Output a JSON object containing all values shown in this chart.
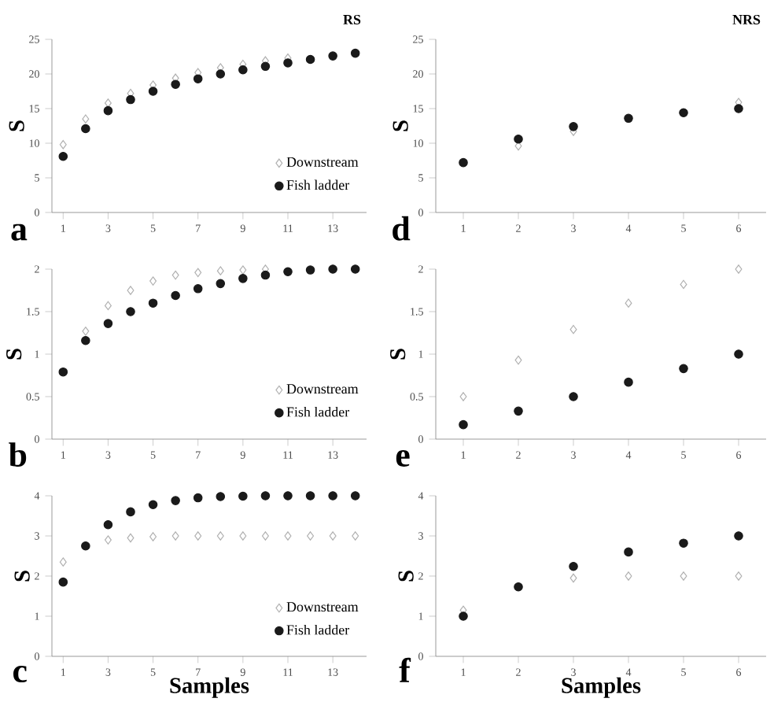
{
  "chart_data": [
    {
      "type": "scatter",
      "title": "RS",
      "ylabel": "S",
      "annotations": [
        "a"
      ],
      "legend": "bottom right",
      "x": [
        1,
        2,
        3,
        4,
        5,
        6,
        7,
        8,
        9,
        10,
        11,
        12,
        13,
        14
      ],
      "xlim": [
        0.5,
        14.5
      ],
      "xticks": [
        1,
        3,
        5,
        7,
        9,
        11,
        13
      ],
      "ylim": [
        0,
        25
      ],
      "yticks": [
        0,
        5,
        10,
        15,
        20,
        25
      ],
      "series": [
        {
          "name": "Downstream",
          "color": "#b0b0b0",
          "marker": "diamond",
          "values": [
            9.8,
            13.5,
            15.8,
            17.2,
            18.4,
            19.4,
            20.2,
            20.9,
            21.4,
            21.9,
            22.3,
            null,
            null,
            null
          ]
        },
        {
          "name": "Fish ladder",
          "color": "#1a1a1a",
          "marker": "circle",
          "values": [
            8.1,
            12.1,
            14.7,
            16.3,
            17.5,
            18.5,
            19.3,
            20.0,
            20.6,
            21.1,
            21.6,
            22.1,
            22.6,
            23.0
          ]
        }
      ]
    },
    {
      "type": "scatter",
      "title": "NRS",
      "ylabel": "S",
      "annotations": [
        "d"
      ],
      "x": [
        1,
        2,
        3,
        4,
        5,
        6
      ],
      "xlim": [
        0.5,
        6.5
      ],
      "xticks": [
        1,
        2,
        3,
        4,
        5,
        6
      ],
      "ylim": [
        0,
        25
      ],
      "yticks": [
        0,
        5,
        10,
        15,
        20,
        25
      ],
      "series": [
        {
          "color": "#b0b0b0",
          "marker": "diamond",
          "values": [
            null,
            9.6,
            11.7,
            null,
            null,
            15.9
          ]
        },
        {
          "color": "#1a1a1a",
          "marker": "circle",
          "values": [
            7.2,
            10.6,
            12.4,
            13.6,
            14.4,
            15.0
          ]
        }
      ]
    },
    {
      "type": "scatter",
      "ylabel": "S",
      "annotations": [
        "b"
      ],
      "legend": "bottom right",
      "x": [
        1,
        2,
        3,
        4,
        5,
        6,
        7,
        8,
        9,
        10,
        11,
        12,
        13,
        14
      ],
      "xlim": [
        0.5,
        14.5
      ],
      "xticks": [
        1,
        3,
        5,
        7,
        9,
        11,
        13
      ],
      "ylim": [
        0,
        2
      ],
      "yticks": [
        0,
        0.5,
        1,
        1.5,
        2
      ],
      "series": [
        {
          "name": "Downstream",
          "color": "#b0b0b0",
          "marker": "diamond",
          "values": [
            null,
            1.27,
            1.57,
            1.75,
            1.86,
            1.93,
            1.96,
            1.98,
            1.99,
            2.0,
            null,
            null,
            null,
            null
          ]
        },
        {
          "name": "Fish ladder",
          "color": "#1a1a1a",
          "marker": "circle",
          "values": [
            0.79,
            1.16,
            1.36,
            1.5,
            1.6,
            1.69,
            1.77,
            1.83,
            1.89,
            1.93,
            1.97,
            1.99,
            2.0,
            2.0
          ]
        }
      ]
    },
    {
      "type": "scatter",
      "ylabel": "S",
      "annotations": [
        "e"
      ],
      "x": [
        1,
        2,
        3,
        4,
        5,
        6
      ],
      "xlim": [
        0.5,
        6.5
      ],
      "xticks": [
        1,
        2,
        3,
        4,
        5,
        6
      ],
      "ylim": [
        0,
        2
      ],
      "yticks": [
        0,
        0.5,
        1,
        1.5,
        2
      ],
      "series": [
        {
          "color": "#b0b0b0",
          "marker": "diamond",
          "values": [
            0.5,
            0.93,
            1.29,
            1.6,
            1.82,
            2.0
          ]
        },
        {
          "color": "#1a1a1a",
          "marker": "circle",
          "values": [
            0.17,
            0.33,
            0.5,
            0.67,
            0.83,
            1.0
          ]
        }
      ]
    },
    {
      "type": "scatter",
      "ylabel": "S",
      "xlabel": "Samples",
      "annotations": [
        "c"
      ],
      "legend": "bottom right",
      "x": [
        1,
        2,
        3,
        4,
        5,
        6,
        7,
        8,
        9,
        10,
        11,
        12,
        13,
        14
      ],
      "xlim": [
        0.5,
        14.5
      ],
      "xticks": [
        1,
        3,
        5,
        7,
        9,
        11,
        13
      ],
      "ylim": [
        0,
        4
      ],
      "yticks": [
        0,
        1,
        2,
        3,
        4
      ],
      "series": [
        {
          "name": "Downstream",
          "color": "#b0b0b0",
          "marker": "diamond",
          "values": [
            2.35,
            null,
            2.9,
            2.95,
            2.98,
            3,
            3,
            3,
            3,
            3,
            3,
            3,
            3,
            3
          ]
        },
        {
          "name": "Fish ladder",
          "color": "#1a1a1a",
          "marker": "circle",
          "values": [
            1.85,
            2.75,
            3.28,
            3.6,
            3.78,
            3.88,
            3.95,
            3.98,
            3.99,
            4,
            4,
            4,
            4,
            4
          ]
        }
      ]
    },
    {
      "type": "scatter",
      "ylabel": "S",
      "xlabel": "Samples",
      "annotations": [
        "f"
      ],
      "x": [
        1,
        2,
        3,
        4,
        5,
        6
      ],
      "xlim": [
        0.5,
        6.5
      ],
      "xticks": [
        1,
        2,
        3,
        4,
        5,
        6
      ],
      "ylim": [
        0,
        4
      ],
      "yticks": [
        0,
        1,
        2,
        3,
        4
      ],
      "series": [
        {
          "color": "#b0b0b0",
          "marker": "diamond",
          "values": [
            1.15,
            null,
            1.95,
            2.0,
            2.0,
            2.0
          ]
        },
        {
          "color": "#1a1a1a",
          "marker": "circle",
          "values": [
            1.0,
            1.73,
            2.24,
            2.6,
            2.82,
            3.0
          ]
        }
      ]
    }
  ]
}
